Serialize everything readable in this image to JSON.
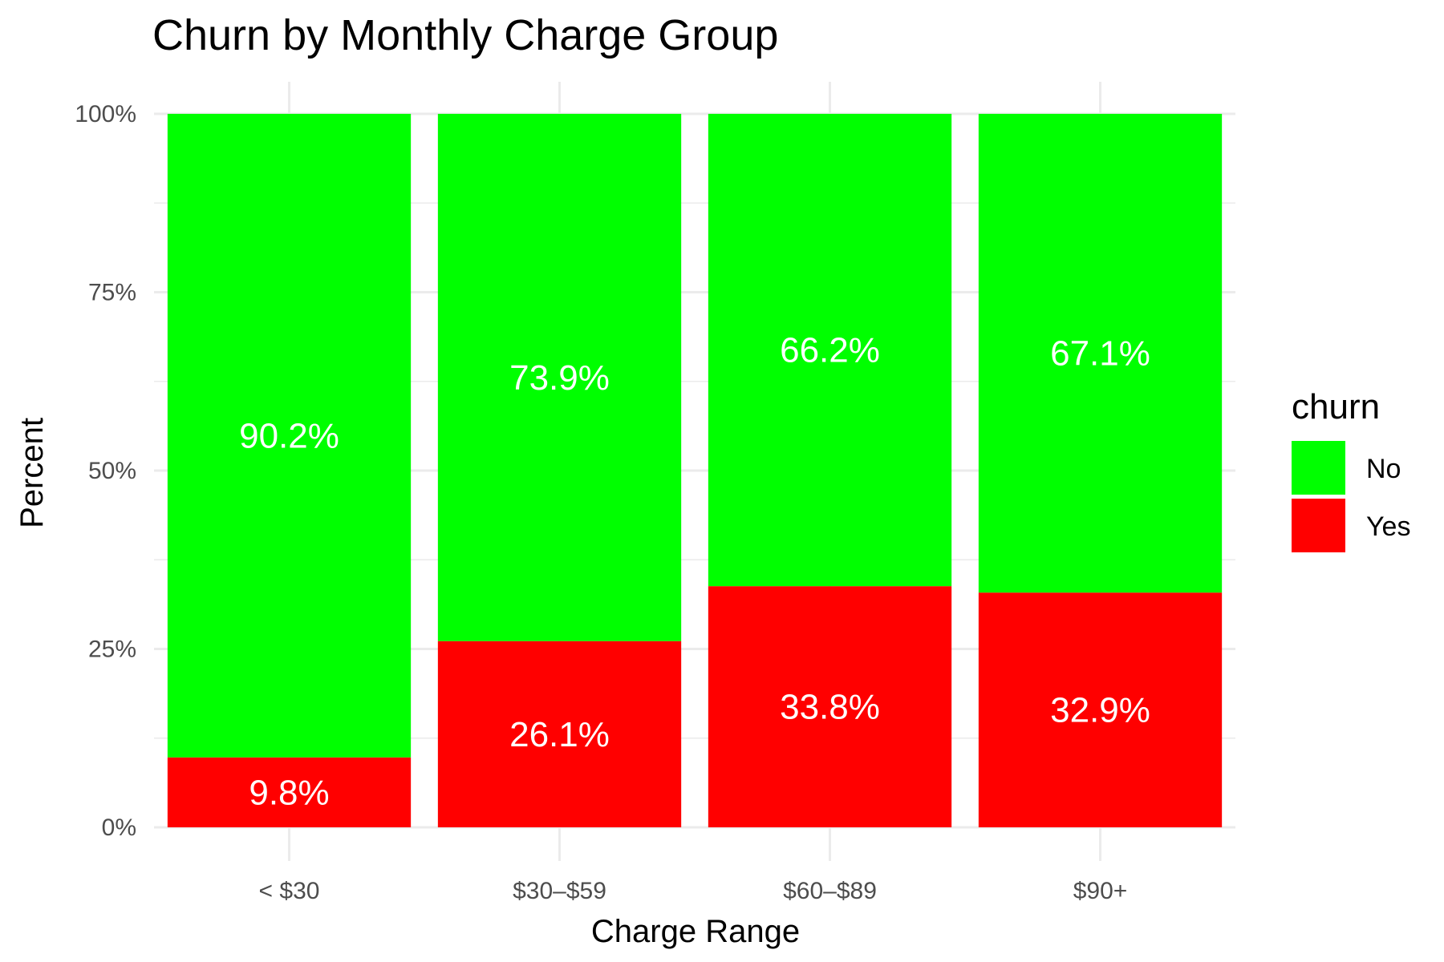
{
  "chart_data": {
    "type": "bar",
    "stacked": true,
    "title": "Churn by Monthly Charge Group",
    "xlabel": "Charge Range",
    "ylabel": "Percent",
    "categories": [
      "< $30",
      "$30–$59",
      "$60–$89",
      "$90+"
    ],
    "ylim": [
      0,
      100
    ],
    "yticks": [
      0,
      25,
      50,
      75,
      100
    ],
    "ytick_labels": [
      "0%",
      "25%",
      "50%",
      "75%",
      "100%"
    ],
    "grid": true,
    "legend": {
      "title": "churn",
      "placement": "right"
    },
    "series": [
      {
        "name": "No",
        "color": "#00ff00",
        "values": [
          90.2,
          73.9,
          66.2,
          67.1
        ],
        "labels": [
          "90.2%",
          "73.9%",
          "66.2%",
          "67.1%"
        ]
      },
      {
        "name": "Yes",
        "color": "#ff0000",
        "values": [
          9.8,
          26.1,
          33.8,
          32.9
        ],
        "labels": [
          "9.8%",
          "26.1%",
          "33.8%",
          "32.9%"
        ]
      }
    ]
  }
}
